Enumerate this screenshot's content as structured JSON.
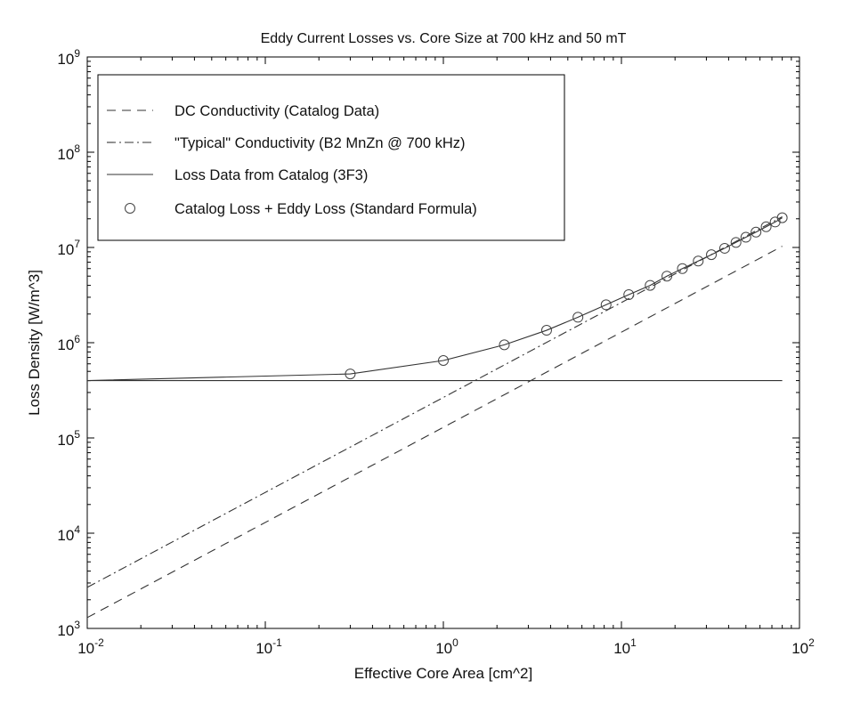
{
  "chart_data": {
    "type": "line",
    "title": "Eddy Current Losses vs. Core Size at 700 kHz and 50 mT",
    "xlabel": "Effective Core Area [cm^2]",
    "ylabel": "Loss Density [W/m^3]",
    "xscale": "log",
    "yscale": "log",
    "xlim": [
      0.01,
      100
    ],
    "ylim": [
      1000,
      1000000000
    ],
    "grid": false,
    "legend_position": "top-left",
    "x_ticks": [
      {
        "value": 0.01,
        "base": "10",
        "exp": "-2"
      },
      {
        "value": 0.1,
        "base": "10",
        "exp": "-1"
      },
      {
        "value": 1,
        "base": "10",
        "exp": "0"
      },
      {
        "value": 10,
        "base": "10",
        "exp": "1"
      },
      {
        "value": 100,
        "base": "10",
        "exp": "2"
      }
    ],
    "y_ticks": [
      {
        "value": 1000,
        "base": "10",
        "exp": "3"
      },
      {
        "value": 10000,
        "base": "10",
        "exp": "4"
      },
      {
        "value": 100000,
        "base": "10",
        "exp": "5"
      },
      {
        "value": 1000000,
        "base": "10",
        "exp": "6"
      },
      {
        "value": 10000000,
        "base": "10",
        "exp": "7"
      },
      {
        "value": 100000000,
        "base": "10",
        "exp": "8"
      },
      {
        "value": 1000000000,
        "base": "10",
        "exp": "9"
      }
    ],
    "series": [
      {
        "name": "DC Conductivity (Catalog Data)",
        "style": "dashed",
        "x": [
          0.01,
          80
        ],
        "y": [
          1300,
          10300000
        ]
      },
      {
        "name": "\"Typical\" Conductivity (B2 MnZn @ 700 kHz)",
        "style": "dashdot",
        "x": [
          0.01,
          80
        ],
        "y": [
          2700,
          21000000
        ]
      },
      {
        "name": "Loss Data from Catalog (3F3)",
        "style": "solid",
        "x": [
          0.01,
          80
        ],
        "y": [
          400000,
          400000
        ]
      },
      {
        "name": "Catalog Loss + Eddy Loss (Standard Formula)",
        "style": "solid-circles",
        "x": [
          0.01,
          0.3,
          1,
          2.2,
          3.8,
          5.7,
          8.2,
          11,
          14.5,
          18,
          22,
          27,
          32,
          38,
          44,
          50,
          57,
          65,
          73,
          80
        ],
        "y": [
          400000,
          470000,
          650000,
          950000,
          1350000,
          1850000,
          2500000,
          3200000,
          4000000,
          5000000,
          6000000,
          7200000,
          8400000,
          9800000,
          11300000,
          12800000,
          14500000,
          16500000,
          18500000,
          20500000
        ],
        "markers": [
          false,
          true,
          true,
          true,
          true,
          true,
          true,
          true,
          true,
          true,
          true,
          true,
          true,
          true,
          true,
          true,
          true,
          true,
          true,
          true
        ]
      }
    ]
  }
}
